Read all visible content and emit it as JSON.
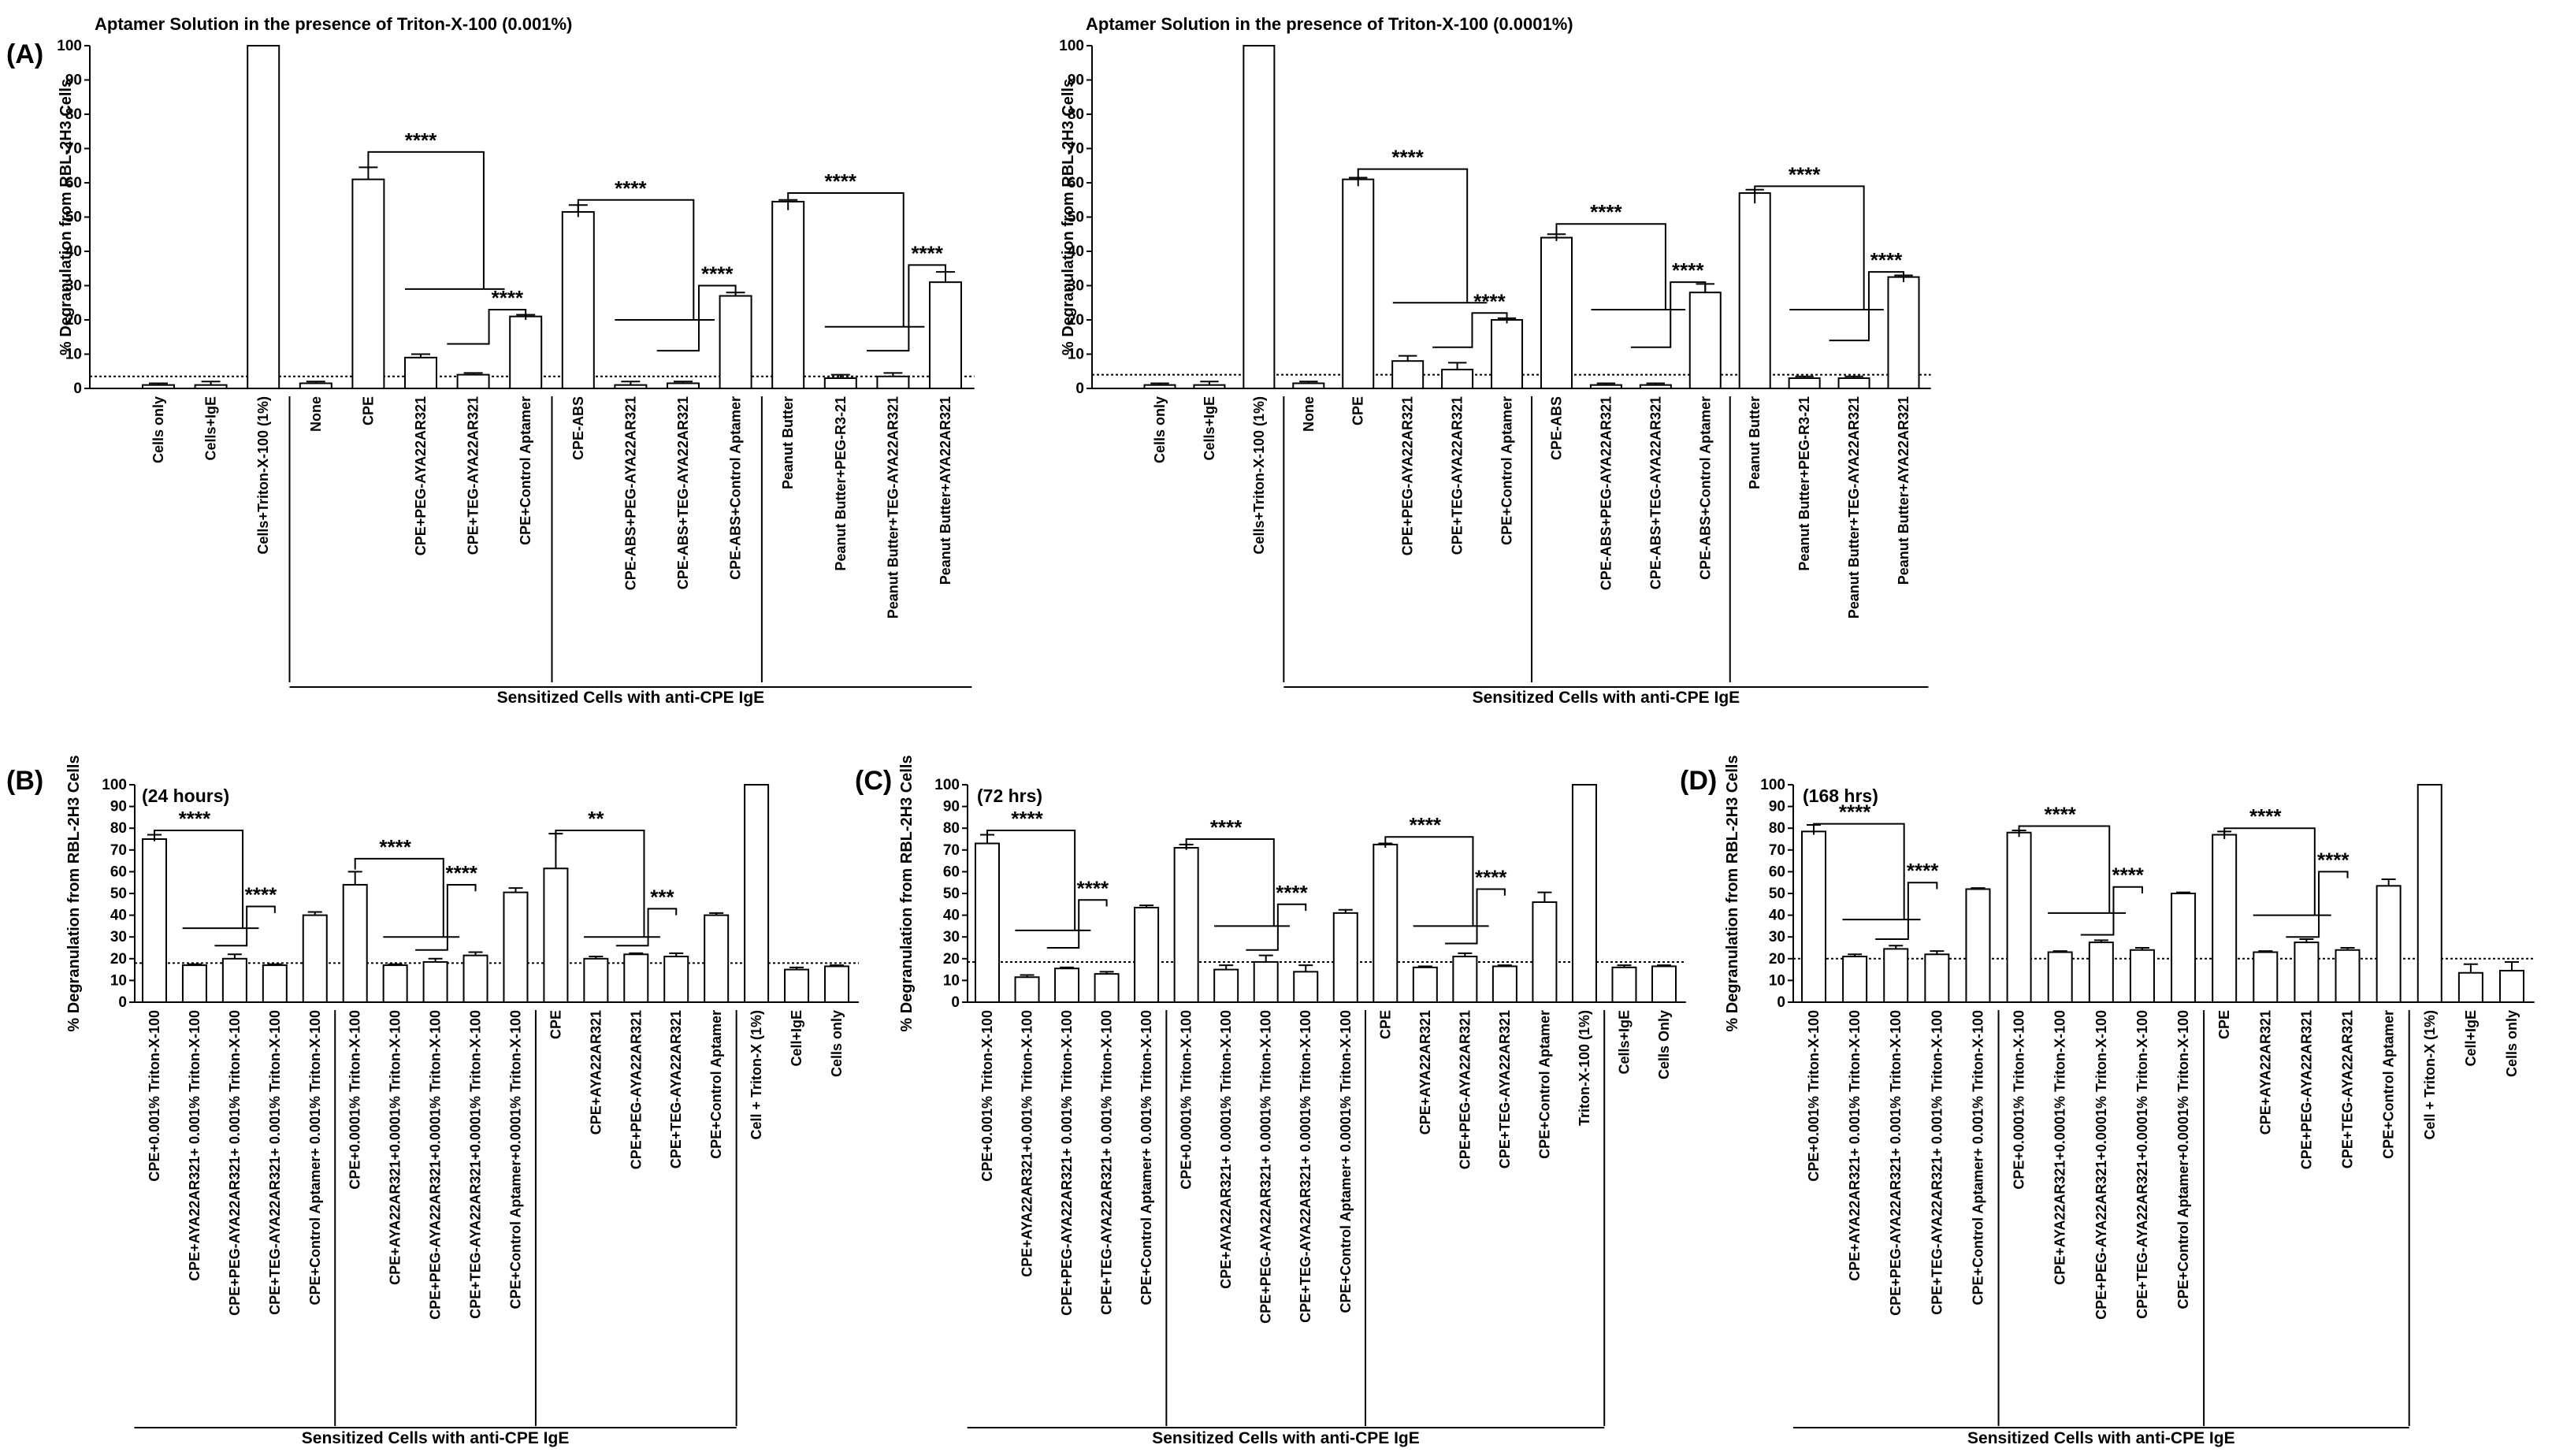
{
  "figure": {
    "panel_labels": [
      "(A)",
      "(B)",
      "(C)",
      "(D)"
    ],
    "ylabel": "% Degranulation from RBL-2H3 Cells",
    "group_label": "Sensitized Cells with anti-CPE IgE"
  },
  "chart_data": [
    {
      "type": "bar",
      "panel": "(A)",
      "title": "Aptamer Solution in the presence of Triton-X-100 (0.001%)",
      "inset": "",
      "ylabel": "% Degranulation from RBL-2H3 Cells",
      "ylim": [
        0,
        100
      ],
      "yticks": [
        0,
        10,
        20,
        30,
        40,
        50,
        60,
        70,
        80,
        90,
        100
      ],
      "baseline": 3.5,
      "categories": [
        "Cells only",
        "Cells+IgE",
        "Cells+Triton-X-100 (1%)",
        "None",
        "CPE",
        "CPE+PEG-AYA22AR321",
        "CPE+TEG-AYA22AR321",
        "CPE+Control Aptamer",
        "CPE-ABS",
        "CPE-ABS+PEG-AYA22AR321",
        "CPE-ABS+TEG-AYA22AR321",
        "CPE-ABS+Control Aptamer",
        "Peanut Butter",
        "Peanut Butter+PEG-R3-21",
        "Peanut Butter+TEG-AYA22AR321",
        "Peanut Butter+AYA22AR321"
      ],
      "values": [
        1,
        1,
        100,
        1.5,
        61,
        9,
        4,
        21,
        51.5,
        1,
        1.5,
        27,
        54.5,
        3,
        3.5,
        31
      ],
      "errors": [
        0.5,
        1,
        0,
        0.5,
        3.5,
        1,
        0.5,
        0.5,
        2,
        1,
        0.5,
        1,
        0.5,
        1,
        1,
        3
      ],
      "separators": [
        2,
        7,
        11
      ],
      "group_span": [
        3,
        15
      ],
      "significance": [
        {
          "top": [
            4
          ],
          "bottom": [
            5,
            6
          ],
          "y_top": 69,
          "y_bottom": 29,
          "label": "****"
        },
        {
          "top": [
            6
          ],
          "bottom": [
            7
          ],
          "y_top": 13,
          "y_bottom": 23,
          "label": "****"
        },
        {
          "top": [
            8
          ],
          "bottom": [
            9,
            10
          ],
          "y_top": 55,
          "y_bottom": 20,
          "label": "****"
        },
        {
          "top": [
            10
          ],
          "bottom": [
            11
          ],
          "y_top": 11,
          "y_bottom": 30,
          "label": "****"
        },
        {
          "top": [
            12
          ],
          "bottom": [
            13,
            14
          ],
          "y_top": 57,
          "y_bottom": 18,
          "label": "****"
        },
        {
          "top": [
            14
          ],
          "bottom": [
            15
          ],
          "y_top": 11,
          "y_bottom": 36,
          "label": "****"
        }
      ]
    },
    {
      "type": "bar",
      "panel": "",
      "title": "Aptamer Solution in the presence of Triton-X-100 (0.0001%)",
      "inset": "",
      "ylabel": "% Degranulation from RBL-2H3 Cells",
      "ylim": [
        0,
        100
      ],
      "yticks": [
        0,
        10,
        20,
        30,
        40,
        50,
        60,
        70,
        80,
        90,
        100
      ],
      "baseline": 4,
      "categories": [
        "Cells only",
        "Cells+IgE",
        "Cells+Triton-X-100 (1%)",
        "None",
        "CPE",
        "CPE+PEG-AYA22AR321",
        "CPE+TEG-AYA22AR321",
        "CPE+Control Aptamer",
        "CPE-ABS",
        "CPE-ABS+PEG-AYA22AR321",
        "CPE-ABS+TEG-AYA22AR321",
        "CPE-ABS+Control Aptamer",
        "Peanut Butter",
        "Peanut Butter+PEG-R3-21",
        "Peanut Butter+TEG-AYA22AR321",
        "Peanut Butter+AYA22AR321"
      ],
      "values": [
        1,
        1,
        100,
        1.5,
        61,
        8,
        5.5,
        20,
        44,
        1,
        1,
        28,
        57,
        3,
        3,
        32.5
      ],
      "errors": [
        0.5,
        1,
        0,
        0.5,
        0.5,
        1.5,
        2,
        0.5,
        1,
        0.5,
        0.5,
        2.5,
        1,
        0.5,
        0.5,
        0.5
      ],
      "separators": [
        2,
        7,
        11
      ],
      "group_span": [
        3,
        15
      ],
      "significance": [
        {
          "top": [
            4
          ],
          "bottom": [
            5,
            6
          ],
          "y_top": 64,
          "y_bottom": 25,
          "label": "****"
        },
        {
          "top": [
            6
          ],
          "bottom": [
            7
          ],
          "y_top": 12,
          "y_bottom": 22,
          "label": "****"
        },
        {
          "top": [
            8
          ],
          "bottom": [
            9,
            10
          ],
          "y_top": 48,
          "y_bottom": 23,
          "label": "****"
        },
        {
          "top": [
            10
          ],
          "bottom": [
            11
          ],
          "y_top": 12,
          "y_bottom": 31,
          "label": "****"
        },
        {
          "top": [
            12
          ],
          "bottom": [
            13,
            14
          ],
          "y_top": 59,
          "y_bottom": 23,
          "label": "****"
        },
        {
          "top": [
            14
          ],
          "bottom": [
            15
          ],
          "y_top": 14,
          "y_bottom": 34,
          "label": "****"
        }
      ]
    },
    {
      "type": "bar",
      "panel": "(B)",
      "title": "",
      "inset": "(24 hours)",
      "ylabel": "% Degranulation from RBL-2H3 Cells",
      "ylim": [
        0,
        100
      ],
      "yticks": [
        0,
        10,
        20,
        30,
        40,
        50,
        60,
        70,
        80,
        90,
        100
      ],
      "baseline": 18,
      "categories": [
        "CPE+0.001% Triton-X-100",
        "CPE+AYA22AR321+ 0.001% Triton-X-100",
        "CPE+PEG-AYA22AR321+ 0.001% Triton-X-100",
        "CPE+TEG-AYA22AR321+ 0.001% Triton-X-100",
        "CPE+Control Aptamer+ 0.001% Triton-X-100",
        "CPE+0.0001% Triton-X-100",
        "CPE+AYA22AR321+0.0001% Triton-X-100",
        "CPE+PEG-AYA22AR321+0.0001% Triton-X-100",
        "CPE+TEG-AYA22AR321+0.0001% Triton-X-100",
        "CPE+Control Aptamer+0.0001% Triton-X-100",
        "CPE",
        "CPE+AYA22AR321",
        "CPE+PEG-AYA22AR321",
        "CPE+TEG-AYA22AR321",
        "CPE+Control Aptamer",
        "Cell + Triton-X (1%)",
        "Cell+IgE",
        "Cells only"
      ],
      "values": [
        75,
        17,
        20,
        17,
        40,
        54,
        17,
        18.5,
        21.5,
        50.5,
        61.5,
        20,
        22,
        21,
        40,
        100,
        15,
        16.5
      ],
      "errors": [
        2,
        0.5,
        2,
        0.5,
        1.5,
        6,
        0.5,
        1.5,
        1.5,
        2,
        16,
        1,
        0.5,
        1.5,
        1,
        0,
        1,
        0.5
      ],
      "separators": [
        4,
        9,
        14
      ],
      "group_span": [
        0,
        14
      ],
      "significance": [
        {
          "top": [
            0
          ],
          "bottom": [
            1,
            2
          ],
          "y_top": 79,
          "y_bottom": 34,
          "label": "****"
        },
        {
          "top": [
            2
          ],
          "bottom": [
            3
          ],
          "y_top": 26,
          "y_bottom": 44,
          "label": "****"
        },
        {
          "top": [
            5
          ],
          "bottom": [
            6,
            7
          ],
          "y_top": 66,
          "y_bottom": 30,
          "label": "****"
        },
        {
          "top": [
            7
          ],
          "bottom": [
            8
          ],
          "y_top": 24,
          "y_bottom": 54,
          "label": "****"
        },
        {
          "top": [
            10
          ],
          "bottom": [
            11,
            12
          ],
          "y_top": 79,
          "y_bottom": 30,
          "label": "**"
        },
        {
          "top": [
            12
          ],
          "bottom": [
            13
          ],
          "y_top": 26,
          "y_bottom": 43,
          "label": "***"
        }
      ]
    },
    {
      "type": "bar",
      "panel": "(C)",
      "title": "",
      "inset": "(72 hrs)",
      "ylabel": "% Degranulation from RBL-2H3 Cells",
      "ylim": [
        0,
        100
      ],
      "yticks": [
        0,
        10,
        20,
        30,
        40,
        50,
        60,
        70,
        80,
        90,
        100
      ],
      "baseline": 18.5,
      "categories": [
        "CPE+0.001% Triton-X-100",
        "CPE+AYA22AR321+0.001% Triton-X-100",
        "CPE+PEG-AYA22AR321+ 0.001% Triton-X-100",
        "CPE+TEG-AYA22AR321+ 0.001% Triton-X-100",
        "CPE+Control Aptamer+ 0.001% Triton-X-100",
        "CPE+0.0001% Triton-X-100",
        "CPE+AYA22AR321+ 0.0001% Triton-X-100",
        "CPE+PEG-AYA22AR321+ 0.0001% Triton-X-100",
        "CPE+TEG-AYA22AR321+ 0.0001% Triton-X-100",
        "CPE+Control Aptamer+ 0.0001% Triton-X-100",
        "CPE",
        "CPE+AYA22AR321",
        "CPE+PEG-AYA22AR321",
        "CPE+TEG-AYA22AR321",
        "CPE+Control Aptamer",
        "Triton-X-100 (1%)",
        "Cells+IgE",
        "Cells Only"
      ],
      "values": [
        73,
        11.5,
        15.5,
        13,
        43.5,
        71,
        15,
        18.5,
        14,
        41,
        72.5,
        16,
        21,
        16.5,
        46,
        100,
        16,
        16.5
      ],
      "errors": [
        4,
        1,
        0.5,
        1,
        1,
        1.5,
        2,
        3,
        3,
        1.5,
        0.5,
        0.5,
        1.5,
        0.5,
        4.5,
        0,
        1,
        0.5
      ],
      "separators": [
        4,
        9,
        15
      ],
      "group_span": [
        0,
        15
      ],
      "significance": [
        {
          "top": [
            0
          ],
          "bottom": [
            1,
            2
          ],
          "y_top": 79,
          "y_bottom": 33,
          "label": "****"
        },
        {
          "top": [
            2
          ],
          "bottom": [
            3
          ],
          "y_top": 25,
          "y_bottom": 47,
          "label": "****"
        },
        {
          "top": [
            5
          ],
          "bottom": [
            6,
            7
          ],
          "y_top": 75,
          "y_bottom": 35,
          "label": "****"
        },
        {
          "top": [
            7
          ],
          "bottom": [
            8
          ],
          "y_top": 24,
          "y_bottom": 45,
          "label": "****"
        },
        {
          "top": [
            10
          ],
          "bottom": [
            11,
            12
          ],
          "y_top": 76,
          "y_bottom": 35,
          "label": "****"
        },
        {
          "top": [
            12
          ],
          "bottom": [
            13
          ],
          "y_top": 27,
          "y_bottom": 52,
          "label": "****"
        }
      ]
    },
    {
      "type": "bar",
      "panel": "(D)",
      "title": "",
      "inset": "(168 hrs)",
      "ylabel": "% Degranulation from RBL-2H3 Cells",
      "ylim": [
        0,
        100
      ],
      "yticks": [
        0,
        10,
        20,
        30,
        40,
        50,
        60,
        70,
        80,
        90,
        100
      ],
      "baseline": 20,
      "categories": [
        "CPE+0.001% Triton-X-100",
        "CPE+AYA22AR321+ 0.001% Triton-X-100",
        "CPE+PEG-AYA22AR321+ 0.001% Triton-X-100",
        "CPE+TEG-AYA22AR321+ 0.001% Triton-X-100",
        "CPE+Control Aptamer+ 0.001% Triton-X-100",
        "CPE+0.0001% Triton-X-100",
        "CPE+AYA22AR321+0.0001% Triton-X-100",
        "CPE+PEG-AYA22AR321+0.0001% Triton-X-100",
        "CPE+TEG-AYA22AR321+0.0001% Triton-X-100",
        "CPE+Control Aptamer+0.0001% Triton-X-100",
        "CPE",
        "CPE+AYA22AR321",
        "CPE+PEG-AYA22AR321",
        "CPE+TEG-AYA22AR321",
        "CPE+Control Aptamer",
        "Cell + Triton-X (1%)",
        "Cell+IgE",
        "Cells only"
      ],
      "values": [
        78.5,
        21,
        24.5,
        22,
        52,
        78,
        23,
        27.5,
        24,
        50,
        77,
        23,
        27.5,
        24,
        53.5,
        100,
        13.5,
        14.5
      ],
      "errors": [
        3,
        1,
        1.5,
        1.5,
        0.5,
        1,
        0.5,
        1,
        1,
        0.5,
        1.5,
        0.5,
        1.5,
        1,
        3,
        0,
        4,
        4
      ],
      "separators": [
        4,
        9,
        14
      ],
      "group_span": [
        0,
        14
      ],
      "significance": [
        {
          "top": [
            0
          ],
          "bottom": [
            1,
            2
          ],
          "y_top": 82,
          "y_bottom": 38,
          "label": "****"
        },
        {
          "top": [
            2
          ],
          "bottom": [
            3
          ],
          "y_top": 29,
          "y_bottom": 55,
          "label": "****"
        },
        {
          "top": [
            5
          ],
          "bottom": [
            6,
            7
          ],
          "y_top": 81,
          "y_bottom": 41,
          "label": "****"
        },
        {
          "top": [
            7
          ],
          "bottom": [
            8
          ],
          "y_top": 31,
          "y_bottom": 53,
          "label": "****"
        },
        {
          "top": [
            10
          ],
          "bottom": [
            11,
            12
          ],
          "y_top": 80,
          "y_bottom": 40,
          "label": "****"
        },
        {
          "top": [
            12
          ],
          "bottom": [
            13
          ],
          "y_top": 30,
          "y_bottom": 60,
          "label": "****"
        }
      ]
    }
  ]
}
